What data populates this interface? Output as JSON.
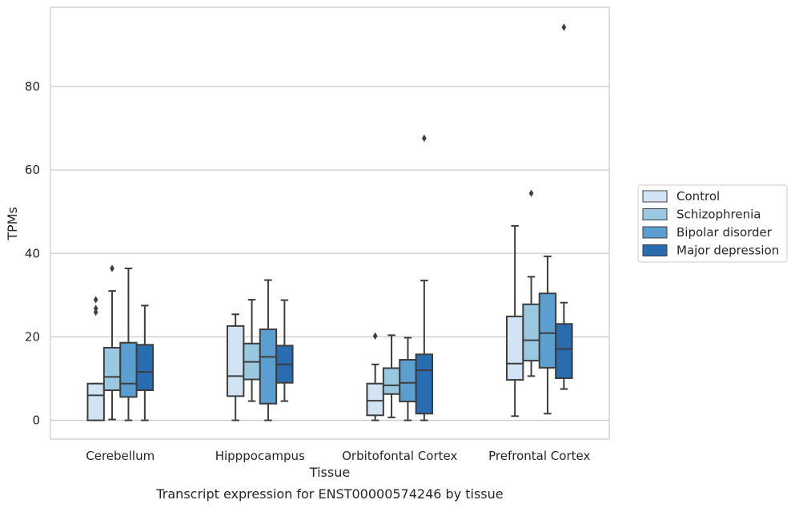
{
  "chart_data": {
    "type": "boxplot",
    "caption": "Transcript expression for ENST00000574246 by tissue",
    "xlabel": "Tissue",
    "ylabel": "TPMs",
    "ylim": [
      -4.5,
      99
    ],
    "yticks": [
      0,
      20,
      40,
      60,
      80
    ],
    "grid": "horizontal",
    "legend_position": "right, outside plot",
    "categories": [
      "Cerebellum",
      "Hipppocampus",
      "Orbitofontal Cortex",
      "Prefrontal Cortex"
    ],
    "series": [
      {
        "name": "Control",
        "color": "#d2e3f3",
        "boxes": [
          {
            "whislo": 0,
            "q1": 0,
            "med": 6,
            "q3": 8.8,
            "whishi": 8.8,
            "fliers": [
              25.9,
              26.8,
              28.9
            ]
          },
          {
            "whislo": 0,
            "q1": 5.8,
            "med": 10.6,
            "q3": 22.6,
            "whishi": 25.4,
            "fliers": []
          },
          {
            "whislo": 0,
            "q1": 1.2,
            "med": 4.7,
            "q3": 8.8,
            "whishi": 13.4,
            "fliers": [
              20.2
            ]
          },
          {
            "whislo": 1,
            "q1": 9.7,
            "med": 13.6,
            "q3": 24.9,
            "whishi": 46.6,
            "fliers": []
          }
        ]
      },
      {
        "name": "Schizophrenia",
        "color": "#9ac8e0",
        "boxes": [
          {
            "whislo": 0.2,
            "q1": 7.2,
            "med": 10.4,
            "q3": 17.4,
            "whishi": 31,
            "fliers": [
              36.4
            ]
          },
          {
            "whislo": 4.6,
            "q1": 9.8,
            "med": 14,
            "q3": 18.4,
            "whishi": 28.9,
            "fliers": []
          },
          {
            "whislo": 0.7,
            "q1": 6.3,
            "med": 8.4,
            "q3": 12.5,
            "whishi": 20.4,
            "fliers": []
          },
          {
            "whislo": 10.6,
            "q1": 14.3,
            "med": 19.2,
            "q3": 27.8,
            "whishi": 34.4,
            "fliers": [
              54.4
            ]
          }
        ]
      },
      {
        "name": "Bipolar disorder",
        "color": "#5a9fcf",
        "boxes": [
          {
            "whislo": 0,
            "q1": 5.6,
            "med": 8.8,
            "q3": 18.6,
            "whishi": 36.4,
            "fliers": []
          },
          {
            "whislo": 0,
            "q1": 4,
            "med": 15.2,
            "q3": 21.8,
            "whishi": 33.6,
            "fliers": []
          },
          {
            "whislo": 0,
            "q1": 4.5,
            "med": 9,
            "q3": 14.5,
            "whishi": 19.8,
            "fliers": []
          },
          {
            "whislo": 1.6,
            "q1": 12.6,
            "med": 20.9,
            "q3": 30.4,
            "whishi": 39.3,
            "fliers": []
          }
        ]
      },
      {
        "name": "Major depression",
        "color": "#2a6cb0",
        "boxes": [
          {
            "whislo": 0,
            "q1": 7.2,
            "med": 11.6,
            "q3": 18.1,
            "whishi": 27.5,
            "fliers": []
          },
          {
            "whislo": 4.6,
            "q1": 9,
            "med": 13.4,
            "q3": 17.9,
            "whishi": 28.8,
            "fliers": []
          },
          {
            "whislo": 0,
            "q1": 1.6,
            "med": 12,
            "q3": 15.8,
            "whishi": 33.5,
            "fliers": [
              67.6
            ]
          },
          {
            "whislo": 7.5,
            "q1": 10.1,
            "med": 17.1,
            "q3": 23.1,
            "whishi": 28.2,
            "fliers": [
              94.2
            ]
          }
        ]
      }
    ]
  }
}
